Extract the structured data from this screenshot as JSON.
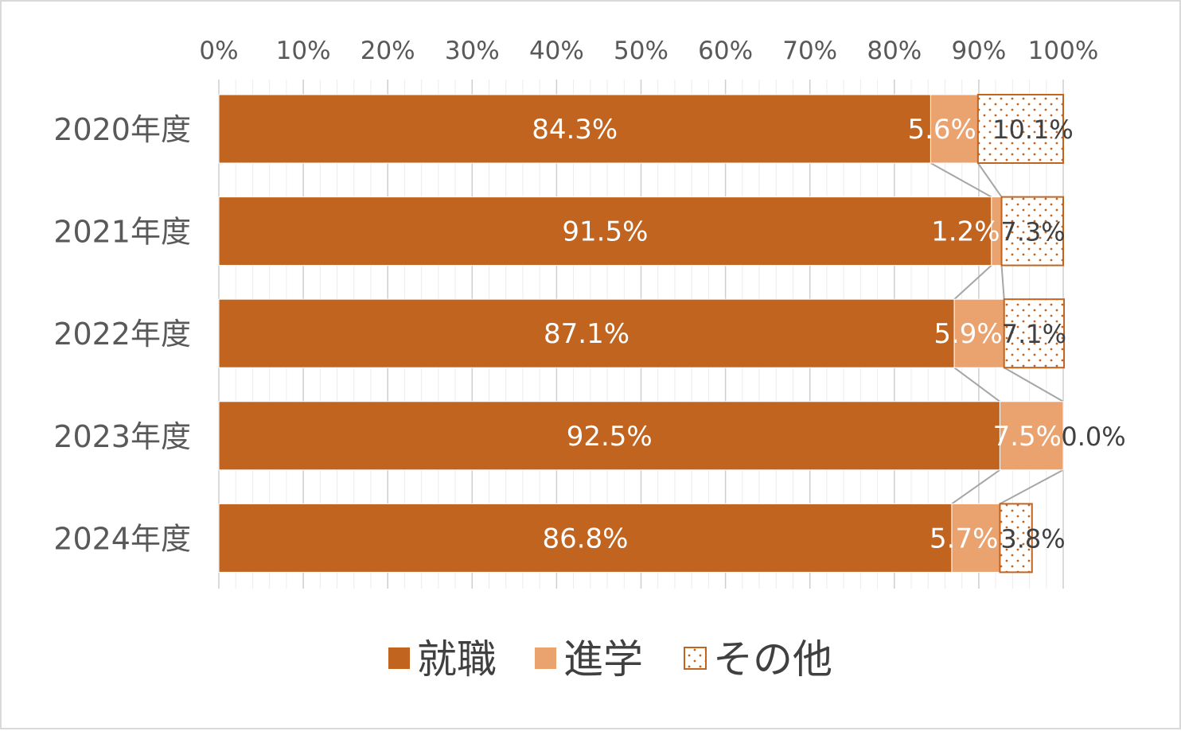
{
  "chart_data": {
    "type": "bar",
    "orientation": "horizontal",
    "stacked": "percent",
    "categories": [
      "2020年度",
      "2021年度",
      "2022年度",
      "2023年度",
      "2024年度"
    ],
    "series": [
      {
        "name": "就職",
        "values": [
          84.3,
          91.5,
          87.1,
          92.5,
          86.8
        ],
        "labels": [
          "84.3%",
          "91.5%",
          "87.1%",
          "92.5%",
          "86.8%"
        ],
        "color": "#c0641f",
        "pattern": "solid"
      },
      {
        "name": "進学",
        "values": [
          5.6,
          1.2,
          5.9,
          7.5,
          5.7
        ],
        "labels": [
          "5.6%",
          "1.2%",
          "5.9%",
          "7.5%",
          "5.7%"
        ],
        "color": "#eaa26f",
        "pattern": "solid"
      },
      {
        "name": "その他",
        "values": [
          10.1,
          7.3,
          7.1,
          0.0,
          3.8
        ],
        "labels": [
          "10.1%",
          "7.3%",
          "7.1%",
          "0.0%",
          "3.8%"
        ],
        "color": "#c0641f",
        "pattern": "dotted"
      }
    ],
    "x_ticks": [
      "0%",
      "10%",
      "20%",
      "30%",
      "40%",
      "50%",
      "60%",
      "70%",
      "80%",
      "90%",
      "100%"
    ],
    "xlim": [
      0,
      100
    ],
    "x_axis_position": "top",
    "series_lines": true,
    "grid": true,
    "legend_position": "bottom"
  }
}
